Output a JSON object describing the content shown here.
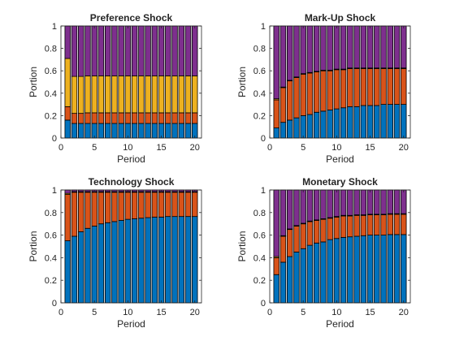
{
  "colors": {
    "series1": "#0072BD",
    "series2": "#D95319",
    "series3": "#EDB120",
    "series4": "#7E2F8E"
  },
  "chart_data": [
    {
      "type": "bar",
      "stacked": true,
      "title": "Preference Shock",
      "xlabel": "Period",
      "ylabel": "Portion",
      "xlim": [
        0,
        21
      ],
      "ylim": [
        0,
        1
      ],
      "xticks": [
        0,
        5,
        10,
        15,
        20
      ],
      "yticks": [
        0,
        0.2,
        0.4,
        0.6,
        0.8,
        1
      ],
      "ytick_labels": [
        "0",
        "0.2",
        "0.4",
        "0.6",
        "0.8",
        "1"
      ],
      "x": [
        1,
        2,
        3,
        4,
        5,
        6,
        7,
        8,
        9,
        10,
        11,
        12,
        13,
        14,
        15,
        16,
        17,
        18,
        19,
        20
      ],
      "series": [
        {
          "values": [
            0.16,
            0.13,
            0.13,
            0.13,
            0.13,
            0.13,
            0.13,
            0.13,
            0.13,
            0.13,
            0.13,
            0.13,
            0.13,
            0.13,
            0.13,
            0.13,
            0.13,
            0.13,
            0.13,
            0.13
          ]
        },
        {
          "values": [
            0.12,
            0.09,
            0.09,
            0.095,
            0.095,
            0.095,
            0.095,
            0.095,
            0.095,
            0.095,
            0.095,
            0.095,
            0.095,
            0.095,
            0.095,
            0.095,
            0.095,
            0.095,
            0.095,
            0.095
          ]
        },
        {
          "values": [
            0.43,
            0.33,
            0.33,
            0.33,
            0.33,
            0.33,
            0.33,
            0.33,
            0.33,
            0.33,
            0.33,
            0.33,
            0.33,
            0.33,
            0.33,
            0.33,
            0.33,
            0.33,
            0.33,
            0.33
          ]
        },
        {
          "values": [
            0.29,
            0.45,
            0.45,
            0.445,
            0.445,
            0.445,
            0.445,
            0.445,
            0.445,
            0.445,
            0.445,
            0.445,
            0.445,
            0.445,
            0.445,
            0.445,
            0.445,
            0.445,
            0.445,
            0.445
          ]
        }
      ]
    },
    {
      "type": "bar",
      "stacked": true,
      "title": "Mark-Up Shock",
      "xlabel": "Period",
      "ylabel": "Portion",
      "xlim": [
        0,
        21
      ],
      "ylim": [
        0,
        1
      ],
      "xticks": [
        0,
        5,
        10,
        15,
        20
      ],
      "yticks": [
        0,
        0.2,
        0.4,
        0.6,
        0.8,
        1
      ],
      "ytick_labels": [
        "0",
        "0.2",
        "0.4",
        "0.6",
        "0.8",
        "1"
      ],
      "x": [
        1,
        2,
        3,
        4,
        5,
        6,
        7,
        8,
        9,
        10,
        11,
        12,
        13,
        14,
        15,
        16,
        17,
        18,
        19,
        20
      ],
      "series": [
        {
          "values": [
            0.09,
            0.14,
            0.16,
            0.18,
            0.2,
            0.21,
            0.23,
            0.24,
            0.25,
            0.26,
            0.27,
            0.28,
            0.28,
            0.29,
            0.29,
            0.29,
            0.3,
            0.3,
            0.3,
            0.3
          ]
        },
        {
          "values": [
            0.25,
            0.31,
            0.35,
            0.36,
            0.37,
            0.37,
            0.36,
            0.36,
            0.35,
            0.35,
            0.34,
            0.34,
            0.34,
            0.33,
            0.33,
            0.33,
            0.32,
            0.32,
            0.32,
            0.32
          ]
        },
        {
          "values": [
            0.01,
            0.005,
            0.005,
            0.005,
            0.005,
            0.005,
            0.005,
            0.005,
            0.005,
            0.005,
            0.005,
            0.005,
            0.005,
            0.005,
            0.005,
            0.005,
            0.005,
            0.005,
            0.005,
            0.005
          ]
        },
        {
          "values": [
            0.65,
            0.545,
            0.485,
            0.455,
            0.425,
            0.415,
            0.405,
            0.395,
            0.395,
            0.385,
            0.385,
            0.375,
            0.375,
            0.375,
            0.375,
            0.375,
            0.375,
            0.375,
            0.375,
            0.375
          ]
        }
      ]
    },
    {
      "type": "bar",
      "stacked": true,
      "title": "Technology Shock",
      "xlabel": "Period",
      "ylabel": "Portion",
      "xlim": [
        0,
        21
      ],
      "ylim": [
        0,
        1
      ],
      "xticks": [
        0,
        5,
        10,
        15,
        20
      ],
      "yticks": [
        0,
        0.2,
        0.4,
        0.6,
        0.8,
        1
      ],
      "ytick_labels": [
        "0",
        "0.2",
        "0.4",
        "0.6",
        "0.8",
        "1"
      ],
      "x": [
        1,
        2,
        3,
        4,
        5,
        6,
        7,
        8,
        9,
        10,
        11,
        12,
        13,
        14,
        15,
        16,
        17,
        18,
        19,
        20
      ],
      "series": [
        {
          "values": [
            0.55,
            0.59,
            0.63,
            0.66,
            0.68,
            0.7,
            0.71,
            0.72,
            0.73,
            0.74,
            0.745,
            0.75,
            0.755,
            0.76,
            0.76,
            0.765,
            0.765,
            0.765,
            0.765,
            0.765
          ]
        },
        {
          "values": [
            0.41,
            0.39,
            0.35,
            0.32,
            0.3,
            0.28,
            0.27,
            0.26,
            0.25,
            0.24,
            0.235,
            0.23,
            0.225,
            0.22,
            0.22,
            0.215,
            0.215,
            0.215,
            0.215,
            0.215
          ]
        },
        {
          "values": [
            0.01,
            0.005,
            0.005,
            0.005,
            0.005,
            0.005,
            0.005,
            0.005,
            0.005,
            0.005,
            0.005,
            0.005,
            0.005,
            0.005,
            0.005,
            0.005,
            0.005,
            0.005,
            0.005,
            0.005
          ]
        },
        {
          "values": [
            0.03,
            0.015,
            0.015,
            0.015,
            0.015,
            0.015,
            0.015,
            0.015,
            0.015,
            0.015,
            0.015,
            0.015,
            0.015,
            0.015,
            0.015,
            0.015,
            0.015,
            0.015,
            0.015,
            0.015
          ]
        }
      ]
    },
    {
      "type": "bar",
      "stacked": true,
      "title": "Monetary Shock",
      "xlabel": "Period",
      "ylabel": "Portion",
      "xlim": [
        0,
        21
      ],
      "ylim": [
        0,
        1
      ],
      "xticks": [
        0,
        5,
        10,
        15,
        20
      ],
      "yticks": [
        0,
        0.2,
        0.4,
        0.6,
        0.8,
        1
      ],
      "ytick_labels": [
        "0",
        "0.2",
        "0.4",
        "0.6",
        "0.8",
        "1"
      ],
      "x": [
        1,
        2,
        3,
        4,
        5,
        6,
        7,
        8,
        9,
        10,
        11,
        12,
        13,
        14,
        15,
        16,
        17,
        18,
        19,
        20
      ],
      "series": [
        {
          "values": [
            0.25,
            0.36,
            0.41,
            0.45,
            0.48,
            0.51,
            0.53,
            0.54,
            0.56,
            0.57,
            0.58,
            0.585,
            0.59,
            0.595,
            0.6,
            0.6,
            0.6,
            0.605,
            0.605,
            0.605
          ]
        },
        {
          "values": [
            0.15,
            0.23,
            0.24,
            0.23,
            0.22,
            0.21,
            0.2,
            0.2,
            0.19,
            0.19,
            0.19,
            0.185,
            0.185,
            0.18,
            0.18,
            0.18,
            0.18,
            0.18,
            0.18,
            0.18
          ]
        },
        {
          "values": [
            0.01,
            0.005,
            0.005,
            0.005,
            0.005,
            0.005,
            0.005,
            0.005,
            0.005,
            0.005,
            0.005,
            0.005,
            0.005,
            0.005,
            0.005,
            0.005,
            0.005,
            0.005,
            0.005,
            0.005
          ]
        },
        {
          "values": [
            0.59,
            0.405,
            0.345,
            0.315,
            0.295,
            0.275,
            0.265,
            0.255,
            0.245,
            0.235,
            0.225,
            0.225,
            0.22,
            0.22,
            0.215,
            0.215,
            0.215,
            0.21,
            0.21,
            0.21
          ]
        }
      ]
    }
  ]
}
